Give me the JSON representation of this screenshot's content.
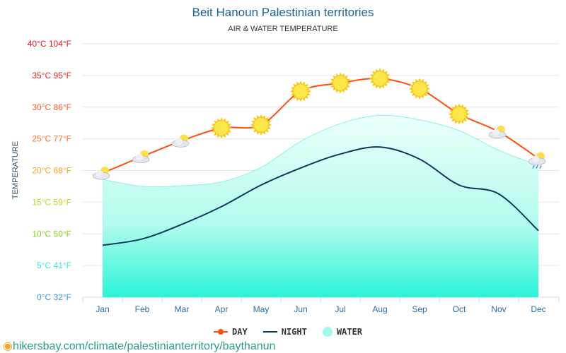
{
  "chart_data": {
    "type": "line",
    "title": "Beit Hanoun Palestinian territories",
    "subtitle": "AIR & WATER TEMPERATURE",
    "ylabel": "TEMPERATURE",
    "ylim": [
      0,
      40
    ],
    "yticks": [
      {
        "value": 0,
        "label": "0°C 32°F",
        "color": "#2e9bd6"
      },
      {
        "value": 5,
        "label": "5°C 41°F",
        "color": "#3ee6d9"
      },
      {
        "value": 10,
        "label": "10°C 50°F",
        "color": "#7ed321"
      },
      {
        "value": 15,
        "label": "15°C 59°F",
        "color": "#c8d22a"
      },
      {
        "value": 20,
        "label": "20°C 68°F",
        "color": "#f5a623"
      },
      {
        "value": 25,
        "label": "25°C 77°F",
        "color": "#ff6d2e"
      },
      {
        "value": 30,
        "label": "30°C 86°F",
        "color": "#ff5a24"
      },
      {
        "value": 35,
        "label": "35°C 95°F",
        "color": "#f0221f"
      },
      {
        "value": 40,
        "label": "40°C 104°F",
        "color": "#e8161c"
      }
    ],
    "categories": [
      "Jan",
      "Feb",
      "Mar",
      "Apr",
      "May",
      "Jun",
      "Jul",
      "Aug",
      "Sep",
      "Oct",
      "Nov",
      "Dec"
    ],
    "series": [
      {
        "name": "DAY",
        "color": "#ff4e0a",
        "values": [
          19.6,
          22.2,
          24.7,
          26.7,
          27.2,
          32.5,
          33.8,
          34.5,
          32.9,
          28.9,
          26.1,
          21.9
        ],
        "icons": [
          "partly-cloudy",
          "partly-cloudy",
          "partly-cloudy",
          "sun",
          "sun",
          "sun",
          "sun",
          "sun",
          "sun",
          "sun",
          "partly-cloudy",
          "cloud-rain"
        ]
      },
      {
        "name": "NIGHT",
        "color": "#0b3b5a",
        "values": [
          8.2,
          9.2,
          11.5,
          14.3,
          17.7,
          20.4,
          22.6,
          23.7,
          21.8,
          17.7,
          16.3,
          10.5
        ]
      },
      {
        "name": "WATER",
        "color": "#a3f7ee",
        "values": [
          18.6,
          17.5,
          17.6,
          18.2,
          20.5,
          24.6,
          27.4,
          28.7,
          28.0,
          26.3,
          23.2,
          20.8
        ]
      }
    ]
  },
  "footer": {
    "url": "hikersbay.com/climate/palestinianterritory/baythanun"
  }
}
